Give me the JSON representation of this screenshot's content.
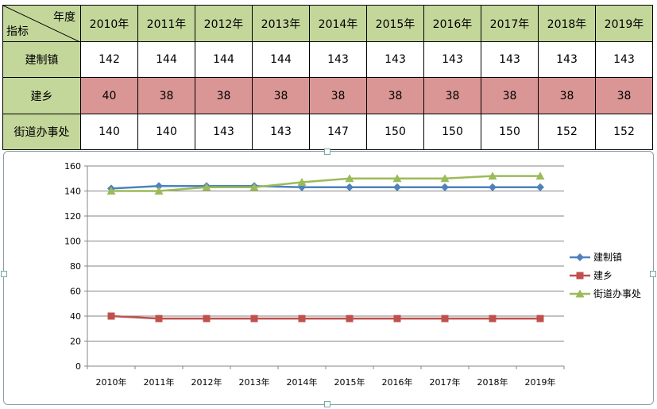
{
  "table": {
    "corner_top": "年度",
    "corner_bottom": "指标",
    "columns": [
      "2010年",
      "2011年",
      "2012年",
      "2013年",
      "2014年",
      "2015年",
      "2016年",
      "2017年",
      "2018年",
      "2019年"
    ],
    "rows": [
      {
        "name": "建制镇",
        "values": [
          "142",
          "144",
          "144",
          "144",
          "143",
          "143",
          "143",
          "143",
          "143",
          "143"
        ]
      },
      {
        "name": "建乡",
        "values": [
          "40",
          "38",
          "38",
          "38",
          "38",
          "38",
          "38",
          "38",
          "38",
          "38"
        ]
      },
      {
        "name": "街道办事处",
        "values": [
          "140",
          "140",
          "143",
          "143",
          "147",
          "150",
          "150",
          "150",
          "152",
          "152"
        ]
      }
    ]
  },
  "chart_data": {
    "type": "line",
    "categories": [
      "2010年",
      "2011年",
      "2012年",
      "2013年",
      "2014年",
      "2015年",
      "2016年",
      "2017年",
      "2018年",
      "2019年"
    ],
    "series": [
      {
        "name": "建制镇",
        "values": [
          142,
          144,
          144,
          144,
          143,
          143,
          143,
          143,
          143,
          143
        ],
        "color": "#4f81bd",
        "marker": "diamond"
      },
      {
        "name": "建乡",
        "values": [
          40,
          38,
          38,
          38,
          38,
          38,
          38,
          38,
          38,
          38
        ],
        "color": "#c0504d",
        "marker": "square"
      },
      {
        "name": "街道办事处",
        "values": [
          140,
          140,
          143,
          143,
          147,
          150,
          150,
          150,
          152,
          152
        ],
        "color": "#9bbb59",
        "marker": "triangle"
      }
    ],
    "ylim": [
      0,
      160
    ],
    "yticks": [
      0,
      20,
      40,
      60,
      80,
      100,
      120,
      140,
      160
    ],
    "grid": true,
    "legend": "right"
  }
}
